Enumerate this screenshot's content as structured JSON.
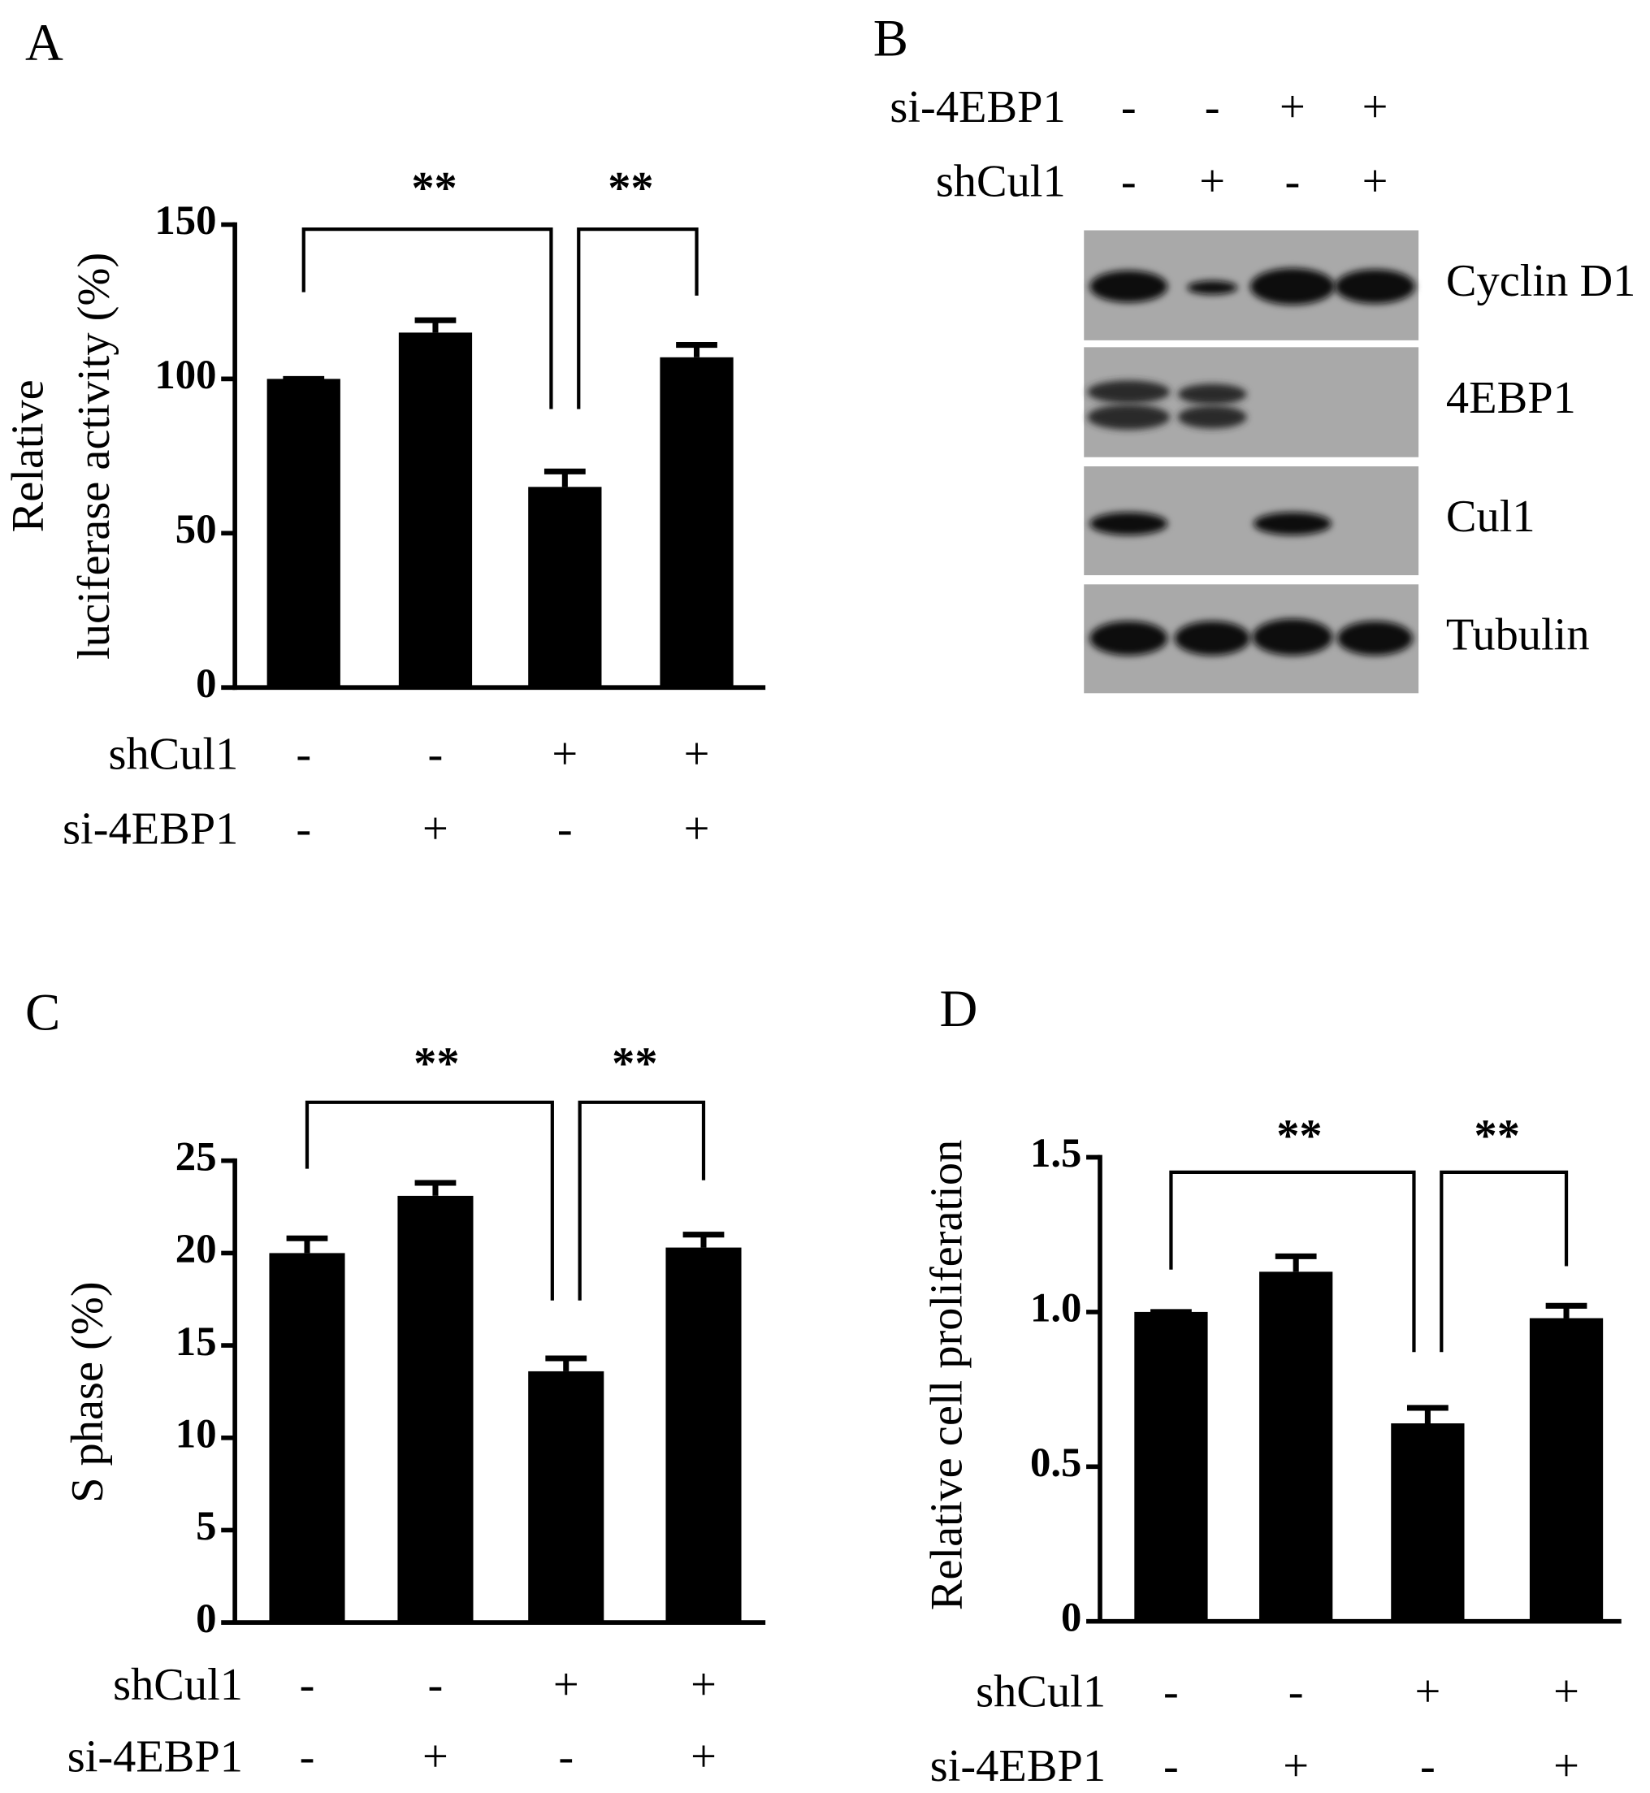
{
  "chart_data": [
    {
      "type": "bar",
      "label": "A",
      "ylabel": [
        "Relative",
        "luciferase activity (%)"
      ],
      "values": [
        100,
        115,
        65,
        107
      ],
      "errors": [
        0,
        4,
        5,
        4
      ],
      "color": "#000000",
      "ylim": [
        0,
        150
      ],
      "yticks": [
        0,
        50,
        100,
        150
      ],
      "annotations": [
        "**",
        "**"
      ],
      "conditions": [
        {
          "name": "shCul1",
          "signs": [
            "-",
            "-",
            "+",
            "+"
          ]
        },
        {
          "name": "si-4EBP1",
          "signs": [
            "-",
            "+",
            "-",
            "+"
          ]
        }
      ]
    },
    {
      "type": "bar",
      "label": "C",
      "ylabel": [
        "S phase (%)"
      ],
      "values": [
        20,
        23.1,
        13.6,
        20.3
      ],
      "errors": [
        0.8,
        0.7,
        0.7,
        0.7
      ],
      "color": "#000000",
      "ylim": [
        0,
        25
      ],
      "yticks": [
        0,
        5,
        10,
        15,
        20,
        25
      ],
      "annotations": [
        "**",
        "**"
      ],
      "conditions": [
        {
          "name": "shCul1",
          "signs": [
            "-",
            "-",
            "+",
            "+"
          ]
        },
        {
          "name": "si-4EBP1",
          "signs": [
            "-",
            "+",
            "-",
            "+"
          ]
        }
      ]
    },
    {
      "type": "bar",
      "label": "D",
      "ylabel": [
        "Relative cell proliferation"
      ],
      "values": [
        1.0,
        1.13,
        0.64,
        0.98
      ],
      "errors": [
        0,
        0.05,
        0.05,
        0.04
      ],
      "color": "#000000",
      "ylim": [
        0,
        1.5
      ],
      "yticks": [
        0,
        0.5,
        {
          "value": 1,
          "label": "1.0"
        },
        1.5
      ],
      "annotations": [
        "**",
        "**"
      ],
      "conditions": [
        {
          "name": "shCul1",
          "signs": [
            "-",
            "-",
            "+",
            "+"
          ]
        },
        {
          "name": "si-4EBP1",
          "signs": [
            "-",
            "+",
            "-",
            "+"
          ]
        }
      ]
    }
  ],
  "blot": {
    "label": "B",
    "conditions": [
      {
        "name": "si-4EBP1",
        "signs": [
          "-",
          "-",
          "+",
          "+"
        ]
      },
      {
        "name": "shCul1",
        "signs": [
          "-",
          "+",
          "-",
          "+"
        ]
      }
    ],
    "bands": [
      "Cyclin D1",
      "4EBP1",
      "Cul1",
      "Tubulin"
    ]
  }
}
